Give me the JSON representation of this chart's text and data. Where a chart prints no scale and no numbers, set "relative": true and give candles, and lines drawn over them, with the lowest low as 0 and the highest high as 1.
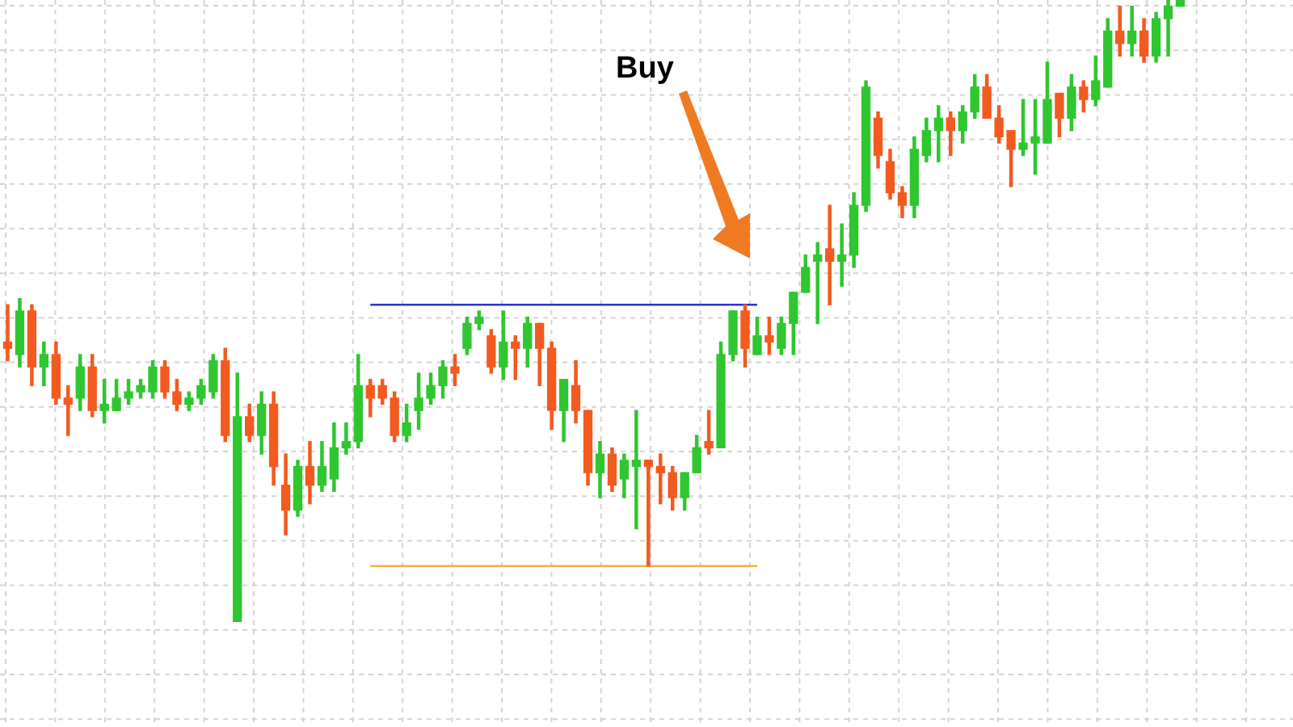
{
  "chart_data": {
    "type": "candlestick",
    "relative": true,
    "grid": true,
    "legend": false,
    "tick_labels": false,
    "marker": "none",
    "annotations": [
      "Buy"
    ],
    "categories": [
      null,
      null,
      null,
      null,
      null,
      null,
      null,
      null,
      null,
      null,
      null,
      null,
      null,
      null,
      null,
      null,
      null,
      null,
      null,
      null,
      null,
      null,
      null,
      null,
      null,
      null,
      null,
      null,
      null,
      null,
      null,
      null,
      null,
      null,
      null,
      null,
      null,
      null,
      null,
      null,
      null,
      null,
      null,
      null,
      null,
      null,
      null,
      null,
      null,
      null,
      null,
      null,
      null,
      null,
      null,
      null,
      null,
      null,
      null,
      null,
      null,
      null,
      null,
      null,
      null,
      null,
      null,
      null,
      null,
      null,
      null,
      null,
      null,
      null,
      null,
      null,
      null,
      null,
      null,
      null,
      null,
      null,
      null,
      null,
      null,
      null,
      null,
      null,
      null,
      null,
      null,
      null,
      null,
      null,
      null,
      null,
      null,
      null
    ],
    "ohlc": [
      [
        0.45,
        0.51,
        0.42,
        0.44
      ],
      [
        0.43,
        0.52,
        0.41,
        0.5
      ],
      [
        0.5,
        0.51,
        0.38,
        0.41
      ],
      [
        0.41,
        0.45,
        0.38,
        0.43
      ],
      [
        0.43,
        0.45,
        0.35,
        0.36
      ],
      [
        0.36,
        0.38,
        0.3,
        0.35
      ],
      [
        0.36,
        0.43,
        0.34,
        0.41
      ],
      [
        0.41,
        0.43,
        0.33,
        0.34
      ],
      [
        0.34,
        0.39,
        0.32,
        0.35
      ],
      [
        0.34,
        0.39,
        0.34,
        0.36
      ],
      [
        0.36,
        0.39,
        0.35,
        0.37
      ],
      [
        0.37,
        0.39,
        0.36,
        0.38
      ],
      [
        0.37,
        0.42,
        0.36,
        0.41
      ],
      [
        0.41,
        0.42,
        0.36,
        0.37
      ],
      [
        0.37,
        0.39,
        0.34,
        0.35
      ],
      [
        0.35,
        0.37,
        0.34,
        0.36
      ],
      [
        0.36,
        0.39,
        0.35,
        0.38
      ],
      [
        0.37,
        0.43,
        0.36,
        0.42
      ],
      [
        0.42,
        0.44,
        0.29,
        0.3
      ],
      [
        0,
        0.4,
        0,
        0.33
      ],
      [
        0.33,
        0.35,
        0.29,
        0.3
      ],
      [
        0.3,
        0.37,
        0.27,
        0.35
      ],
      [
        0.35,
        0.37,
        0.22,
        0.25
      ],
      [
        0.22,
        0.27,
        0.14,
        0.18
      ],
      [
        0.18,
        0.26,
        0.17,
        0.25
      ],
      [
        0.25,
        0.29,
        0.19,
        0.22
      ],
      [
        0.22,
        0.29,
        0.21,
        0.25
      ],
      [
        0.23,
        0.32,
        0.21,
        0.28
      ],
      [
        0.28,
        0.32,
        0.27,
        0.29
      ],
      [
        0.29,
        0.43,
        0.28,
        0.38
      ],
      [
        0.38,
        0.39,
        0.33,
        0.36
      ],
      [
        0.38,
        0.39,
        0.35,
        0.36
      ],
      [
        0.36,
        0.37,
        0.29,
        0.3
      ],
      [
        0.3,
        0.35,
        0.29,
        0.32
      ],
      [
        0.34,
        0.4,
        0.31,
        0.36
      ],
      [
        0.36,
        0.4,
        0.35,
        0.38
      ],
      [
        0.38,
        0.42,
        0.36,
        0.41
      ],
      [
        0.41,
        0.43,
        0.38,
        0.4
      ],
      [
        0.44,
        0.49,
        0.43,
        0.48
      ],
      [
        0.48,
        0.5,
        0.47,
        0.49
      ],
      [
        0.46,
        0.47,
        0.4,
        0.41
      ],
      [
        0.41,
        0.5,
        0.39,
        0.45
      ],
      [
        0.45,
        0.46,
        0.39,
        0.44
      ],
      [
        0.44,
        0.49,
        0.41,
        0.48
      ],
      [
        0.48,
        0.48,
        0.38,
        0.44
      ],
      [
        0.44,
        0.45,
        0.31,
        0.34
      ],
      [
        0.34,
        0.39,
        0.29,
        0.39
      ],
      [
        0.38,
        0.42,
        0.32,
        0.34
      ],
      [
        0.34,
        0.34,
        0.22,
        0.24
      ],
      [
        0.24,
        0.29,
        0.2,
        0.27
      ],
      [
        0.27,
        0.28,
        0.21,
        0.22
      ],
      [
        0.23,
        0.27,
        0.2,
        0.26
      ],
      [
        0.25,
        0.34,
        0.15,
        0.26
      ],
      [
        0.26,
        0.26,
        0.09,
        0.25
      ],
      [
        0.25,
        0.27,
        0.19,
        0.24
      ],
      [
        0.24,
        0.25,
        0.18,
        0.2
      ],
      [
        0.2,
        0.24,
        0.18,
        0.24
      ],
      [
        0.24,
        0.3,
        0.24,
        0.28
      ],
      [
        0.29,
        0.34,
        0.27,
        0.28
      ],
      [
        0.28,
        0.45,
        0.28,
        0.43
      ],
      [
        0.43,
        0.5,
        0.42,
        0.5
      ],
      [
        0.5,
        0.51,
        0.41,
        0.44
      ],
      [
        0.43,
        0.49,
        0.43,
        0.46
      ],
      [
        0.46,
        0.49,
        0.43,
        0.45
      ],
      [
        0.44,
        0.49,
        0.43,
        0.48
      ],
      [
        0.48,
        0.53,
        0.43,
        0.53
      ],
      [
        0.53,
        0.59,
        0.53,
        0.57
      ],
      [
        0.58,
        0.61,
        0.48,
        0.59
      ],
      [
        0.6,
        0.67,
        0.51,
        0.58
      ],
      [
        0.58,
        0.64,
        0.54,
        0.59
      ],
      [
        0.59,
        0.69,
        0.57,
        0.67
      ],
      [
        0.67,
        0.87,
        0.66,
        0.86
      ],
      [
        0.81,
        0.82,
        0.73,
        0.75
      ],
      [
        0.74,
        0.76,
        0.68,
        0.69
      ],
      [
        0.69,
        0.7,
        0.65,
        0.67
      ],
      [
        0.67,
        0.78,
        0.65,
        0.76
      ],
      [
        0.75,
        0.81,
        0.74,
        0.79
      ],
      [
        0.79,
        0.83,
        0.74,
        0.81
      ],
      [
        0.81,
        0.82,
        0.75,
        0.79
      ],
      [
        0.79,
        0.83,
        0.77,
        0.82
      ],
      [
        0.82,
        0.88,
        0.81,
        0.86
      ],
      [
        0.86,
        0.88,
        0.81,
        0.81
      ],
      [
        0.81,
        0.83,
        0.77,
        0.78
      ],
      [
        0.79,
        0.79,
        0.7,
        0.76
      ],
      [
        0.76,
        0.84,
        0.75,
        0.77
      ],
      [
        0.77,
        0.84,
        0.72,
        0.78
      ],
      [
        0.77,
        0.9,
        0.77,
        0.84
      ],
      [
        0.85,
        0.85,
        0.78,
        0.81
      ],
      [
        0.81,
        0.88,
        0.79,
        0.86
      ],
      [
        0.86,
        0.87,
        0.82,
        0.84
      ],
      [
        0.84,
        0.91,
        0.83,
        0.87
      ],
      [
        0.86,
        0.97,
        0.86,
        0.95
      ],
      [
        0.95,
        0.99,
        0.91,
        0.93
      ],
      [
        0.93,
        0.99,
        0.91,
        0.95
      ],
      [
        0.95,
        0.97,
        0.9,
        0.91
      ],
      [
        0.91,
        0.98,
        0.9,
        0.97
      ],
      [
        0.97,
        1,
        0.91,
        0.99
      ],
      [
        0.99,
        1,
        0.99,
        1
      ]
    ],
    "colors": [
      "#f25a1f",
      "#2fc62f",
      "#f25a1f",
      "#2fc62f",
      "#f25a1f",
      "#f25a1f",
      "#2fc62f",
      "#f25a1f",
      "#2fc62f",
      "#2fc62f",
      "#2fc62f",
      "#2fc62f",
      "#2fc62f",
      "#f25a1f",
      "#f25a1f",
      "#2fc62f",
      "#2fc62f",
      "#2fc62f",
      "#f25a1f",
      "#2fc62f",
      "#f25a1f",
      "#2fc62f",
      "#f25a1f",
      "#f25a1f",
      "#2fc62f",
      "#f25a1f",
      "#2fc62f",
      "#2fc62f",
      "#2fc62f",
      "#2fc62f",
      "#f25a1f",
      "#f25a1f",
      "#f25a1f",
      "#2fc62f",
      "#2fc62f",
      "#2fc62f",
      "#2fc62f",
      "#f25a1f",
      "#2fc62f",
      "#2fc62f",
      "#f25a1f",
      "#2fc62f",
      "#f25a1f",
      "#2fc62f",
      "#f25a1f",
      "#f25a1f",
      "#2fc62f",
      "#f25a1f",
      "#f25a1f",
      "#2fc62f",
      "#f25a1f",
      "#2fc62f",
      "#2fc62f",
      "#f25a1f",
      "#f25a1f",
      "#f25a1f",
      "#2fc62f",
      "#2fc62f",
      "#f25a1f",
      "#2fc62f",
      "#2fc62f",
      "#f25a1f",
      "#2fc62f",
      "#f25a1f",
      "#2fc62f",
      "#2fc62f",
      "#2fc62f",
      "#2fc62f",
      "#f25a1f",
      "#2fc62f",
      "#2fc62f",
      "#2fc62f",
      "#f25a1f",
      "#f25a1f",
      "#f25a1f",
      "#2fc62f",
      "#2fc62f",
      "#2fc62f",
      "#f25a1f",
      "#2fc62f",
      "#2fc62f",
      "#f25a1f",
      "#f25a1f",
      "#f25a1f",
      "#2fc62f",
      "#2fc62f",
      "#2fc62f",
      "#f25a1f",
      "#2fc62f",
      "#f25a1f",
      "#2fc62f",
      "#2fc62f",
      "#f25a1f",
      "#2fc62f",
      "#f25a1f",
      "#2fc62f",
      "#2fc62f",
      "#2fc62f"
    ],
    "series": [
      {
        "type": "line",
        "color": "#2b34c9",
        "values": [
          null,
          null,
          null,
          null,
          null,
          null,
          null,
          null,
          null,
          null,
          null,
          null,
          null,
          null,
          null,
          null,
          null,
          null,
          null,
          null,
          null,
          null,
          null,
          null,
          null,
          null,
          null,
          null,
          null,
          null,
          0.51,
          0.51,
          0.51,
          0.51,
          0.51,
          0.51,
          0.51,
          0.51,
          0.51,
          0.51,
          0.51,
          0.51,
          0.51,
          0.51,
          0.51,
          0.51,
          0.51,
          0.51,
          0.51,
          0.51,
          0.51,
          0.51,
          0.51,
          0.51,
          0.51,
          0.51,
          0.51,
          0.51,
          0.51,
          0.51,
          0.51,
          0.51,
          0.51,
          null,
          null,
          null,
          null,
          null,
          null,
          null,
          null,
          null,
          null,
          null,
          null,
          null,
          null,
          null,
          null,
          null,
          null,
          null,
          null,
          null,
          null,
          null,
          null,
          null,
          null,
          null,
          null,
          null,
          null,
          null,
          null,
          null,
          null,
          null
        ]
      },
      {
        "type": "line",
        "color": "#f0b042",
        "values": [
          null,
          null,
          null,
          null,
          null,
          null,
          null,
          null,
          null,
          null,
          null,
          null,
          null,
          null,
          null,
          null,
          null,
          null,
          null,
          null,
          null,
          null,
          null,
          null,
          null,
          null,
          null,
          null,
          null,
          null,
          0.09,
          0.09,
          0.09,
          0.09,
          0.09,
          0.09,
          0.09,
          0.09,
          0.09,
          0.09,
          0.09,
          0.09,
          0.09,
          0.09,
          0.09,
          0.09,
          0.09,
          0.09,
          0.09,
          0.09,
          0.09,
          0.09,
          0.09,
          0.09,
          0.09,
          0.09,
          0.09,
          0.09,
          0.09,
          0.09,
          0.09,
          0.09,
          0.09,
          null,
          null,
          null,
          null,
          null,
          null,
          null,
          null,
          null,
          null,
          null,
          null,
          null,
          null,
          null,
          null,
          null,
          null,
          null,
          null,
          null,
          null,
          null,
          null,
          null,
          null,
          null,
          null,
          null,
          null,
          null,
          null,
          null,
          null,
          null
        ]
      }
    ]
  }
}
